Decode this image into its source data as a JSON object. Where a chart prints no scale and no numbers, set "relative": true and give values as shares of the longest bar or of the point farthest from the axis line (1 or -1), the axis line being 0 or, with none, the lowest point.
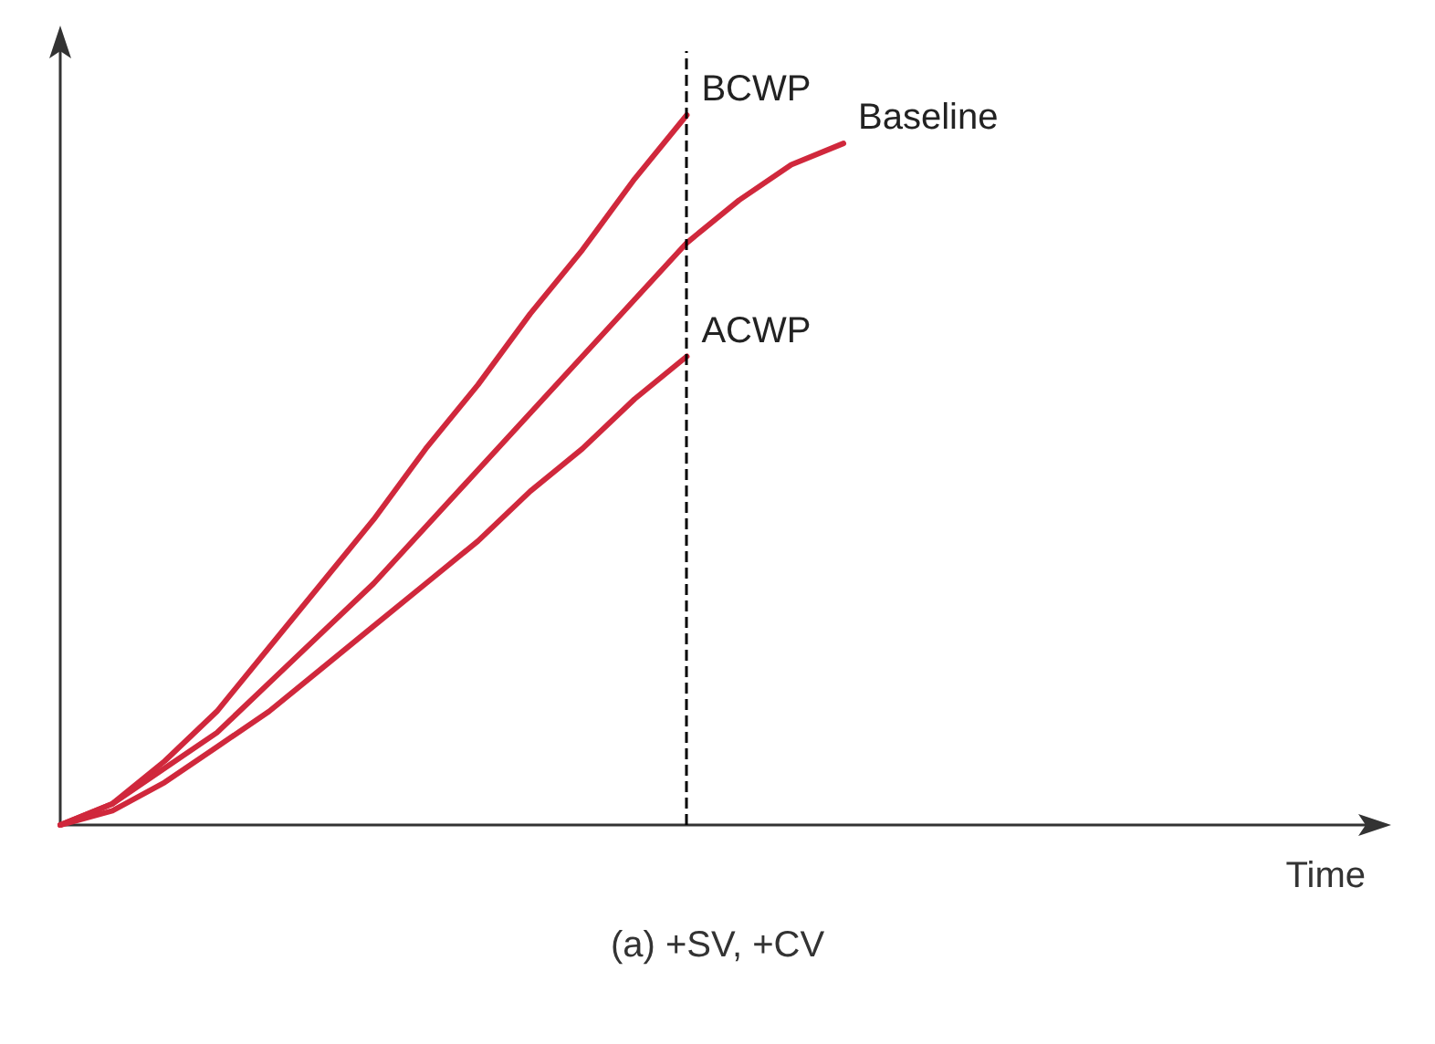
{
  "chart_data": {
    "type": "line",
    "relative": true,
    "xlabel": "Time",
    "annotations": [
      "(a) +SV, +CV"
    ],
    "legend": false,
    "grid": false,
    "marker": "none",
    "line_style": "solid",
    "categories": [
      null,
      null,
      null,
      null,
      null,
      null,
      null,
      null,
      null,
      null,
      null,
      null,
      null,
      null,
      null,
      null,
      null,
      null,
      null,
      null,
      null,
      null,
      null,
      null,
      null,
      null
    ],
    "series": [
      {
        "name": "BCWP",
        "color": "#d0283c",
        "values": [
          0,
          0.03,
          0.09,
          0.16,
          0.25,
          0.34,
          0.43,
          0.53,
          0.62,
          0.72,
          0.81,
          0.91,
          1,
          null,
          null,
          null,
          null,
          null,
          null,
          null,
          null,
          null,
          null,
          null,
          null,
          null
        ]
      },
      {
        "name": "Baseline",
        "color": "#d0283c",
        "values": [
          0,
          0.03,
          0.08,
          0.13,
          0.2,
          0.27,
          0.34,
          0.42,
          0.5,
          0.58,
          0.66,
          0.74,
          0.82,
          0.88,
          0.93,
          0.96,
          null,
          null,
          null,
          null,
          null,
          null,
          null,
          null,
          null,
          null
        ]
      },
      {
        "name": "ACWP",
        "color": "#d0283c",
        "values": [
          0,
          0.02,
          0.06,
          0.11,
          0.16,
          0.22,
          0.28,
          0.34,
          0.4,
          0.47,
          0.53,
          0.6,
          0.66,
          null,
          null,
          null,
          null,
          null,
          null,
          null,
          null,
          null,
          null,
          null,
          null,
          null
        ]
      }
    ]
  }
}
